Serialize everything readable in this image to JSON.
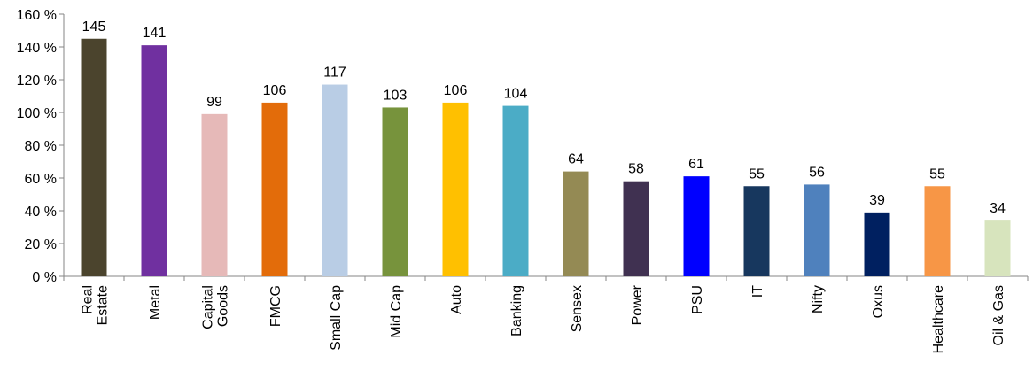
{
  "chart_data": {
    "type": "bar",
    "title": "",
    "xlabel": "",
    "ylabel": "",
    "ylim": [
      0,
      160
    ],
    "y_tick_step": 20,
    "y_tick_format": "{v} %",
    "grid": false,
    "legend": "none",
    "categories": [
      [
        "Real",
        "Estate"
      ],
      [
        "Metal"
      ],
      [
        "Capital",
        "Goods"
      ],
      [
        "FMCG"
      ],
      [
        "Small Cap"
      ],
      [
        "Mid Cap"
      ],
      [
        "Auto"
      ],
      [
        "Banking"
      ],
      [
        "Sensex"
      ],
      [
        "Power"
      ],
      [
        "PSU"
      ],
      [
        "IT"
      ],
      [
        "Nifty"
      ],
      [
        "Oxus"
      ],
      [
        "Healthcare"
      ],
      [
        "Oil & Gas"
      ]
    ],
    "values": [
      145,
      141,
      99,
      106,
      117,
      103,
      106,
      104,
      64,
      58,
      61,
      55,
      56,
      39,
      55,
      34
    ],
    "colors": [
      "#4B442D",
      "#7030A0",
      "#E6B9B8",
      "#E36C0A",
      "#B9CDE5",
      "#77933C",
      "#FFC000",
      "#4BACC6",
      "#948A54",
      "#403151",
      "#0000FF",
      "#17375E",
      "#4F81BD",
      "#002060",
      "#F79646",
      "#D7E4BD"
    ]
  }
}
